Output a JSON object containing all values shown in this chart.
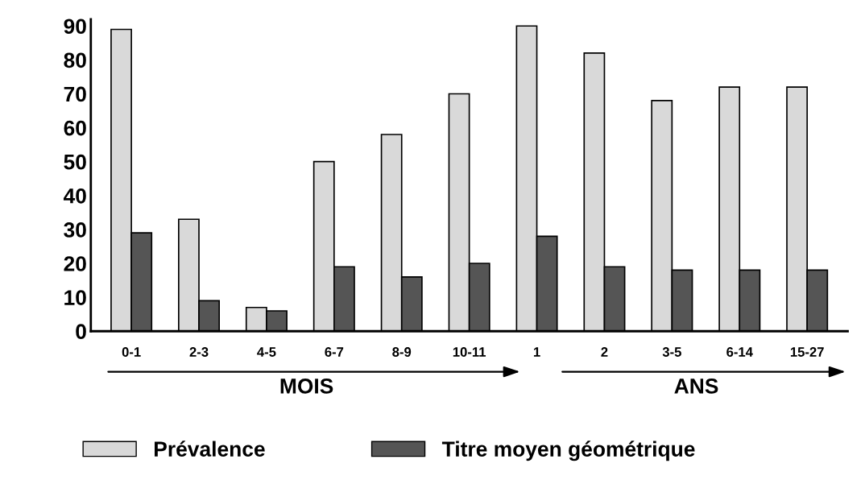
{
  "chart_data": {
    "type": "bar",
    "categories": [
      "0-1",
      "2-3",
      "4-5",
      "6-7",
      "8-9",
      "10-11",
      "1",
      "2",
      "3-5",
      "6-14",
      "15-27"
    ],
    "series": [
      {
        "name": "Prévalence",
        "color": "#d9d9d9",
        "values": [
          89,
          33,
          7,
          50,
          58,
          70,
          90,
          82,
          68,
          72,
          72
        ]
      },
      {
        "name": "Titre moyen géométrique",
        "color": "#555555",
        "values": [
          29,
          9,
          6,
          19,
          16,
          20,
          28,
          19,
          18,
          18,
          18
        ]
      }
    ],
    "ylim": [
      0,
      92
    ],
    "yticks": [
      0,
      10,
      20,
      30,
      40,
      50,
      60,
      70,
      80,
      90
    ],
    "annotations": [
      "MOIS",
      "ANS"
    ],
    "grid": false,
    "legend": "bottom"
  }
}
